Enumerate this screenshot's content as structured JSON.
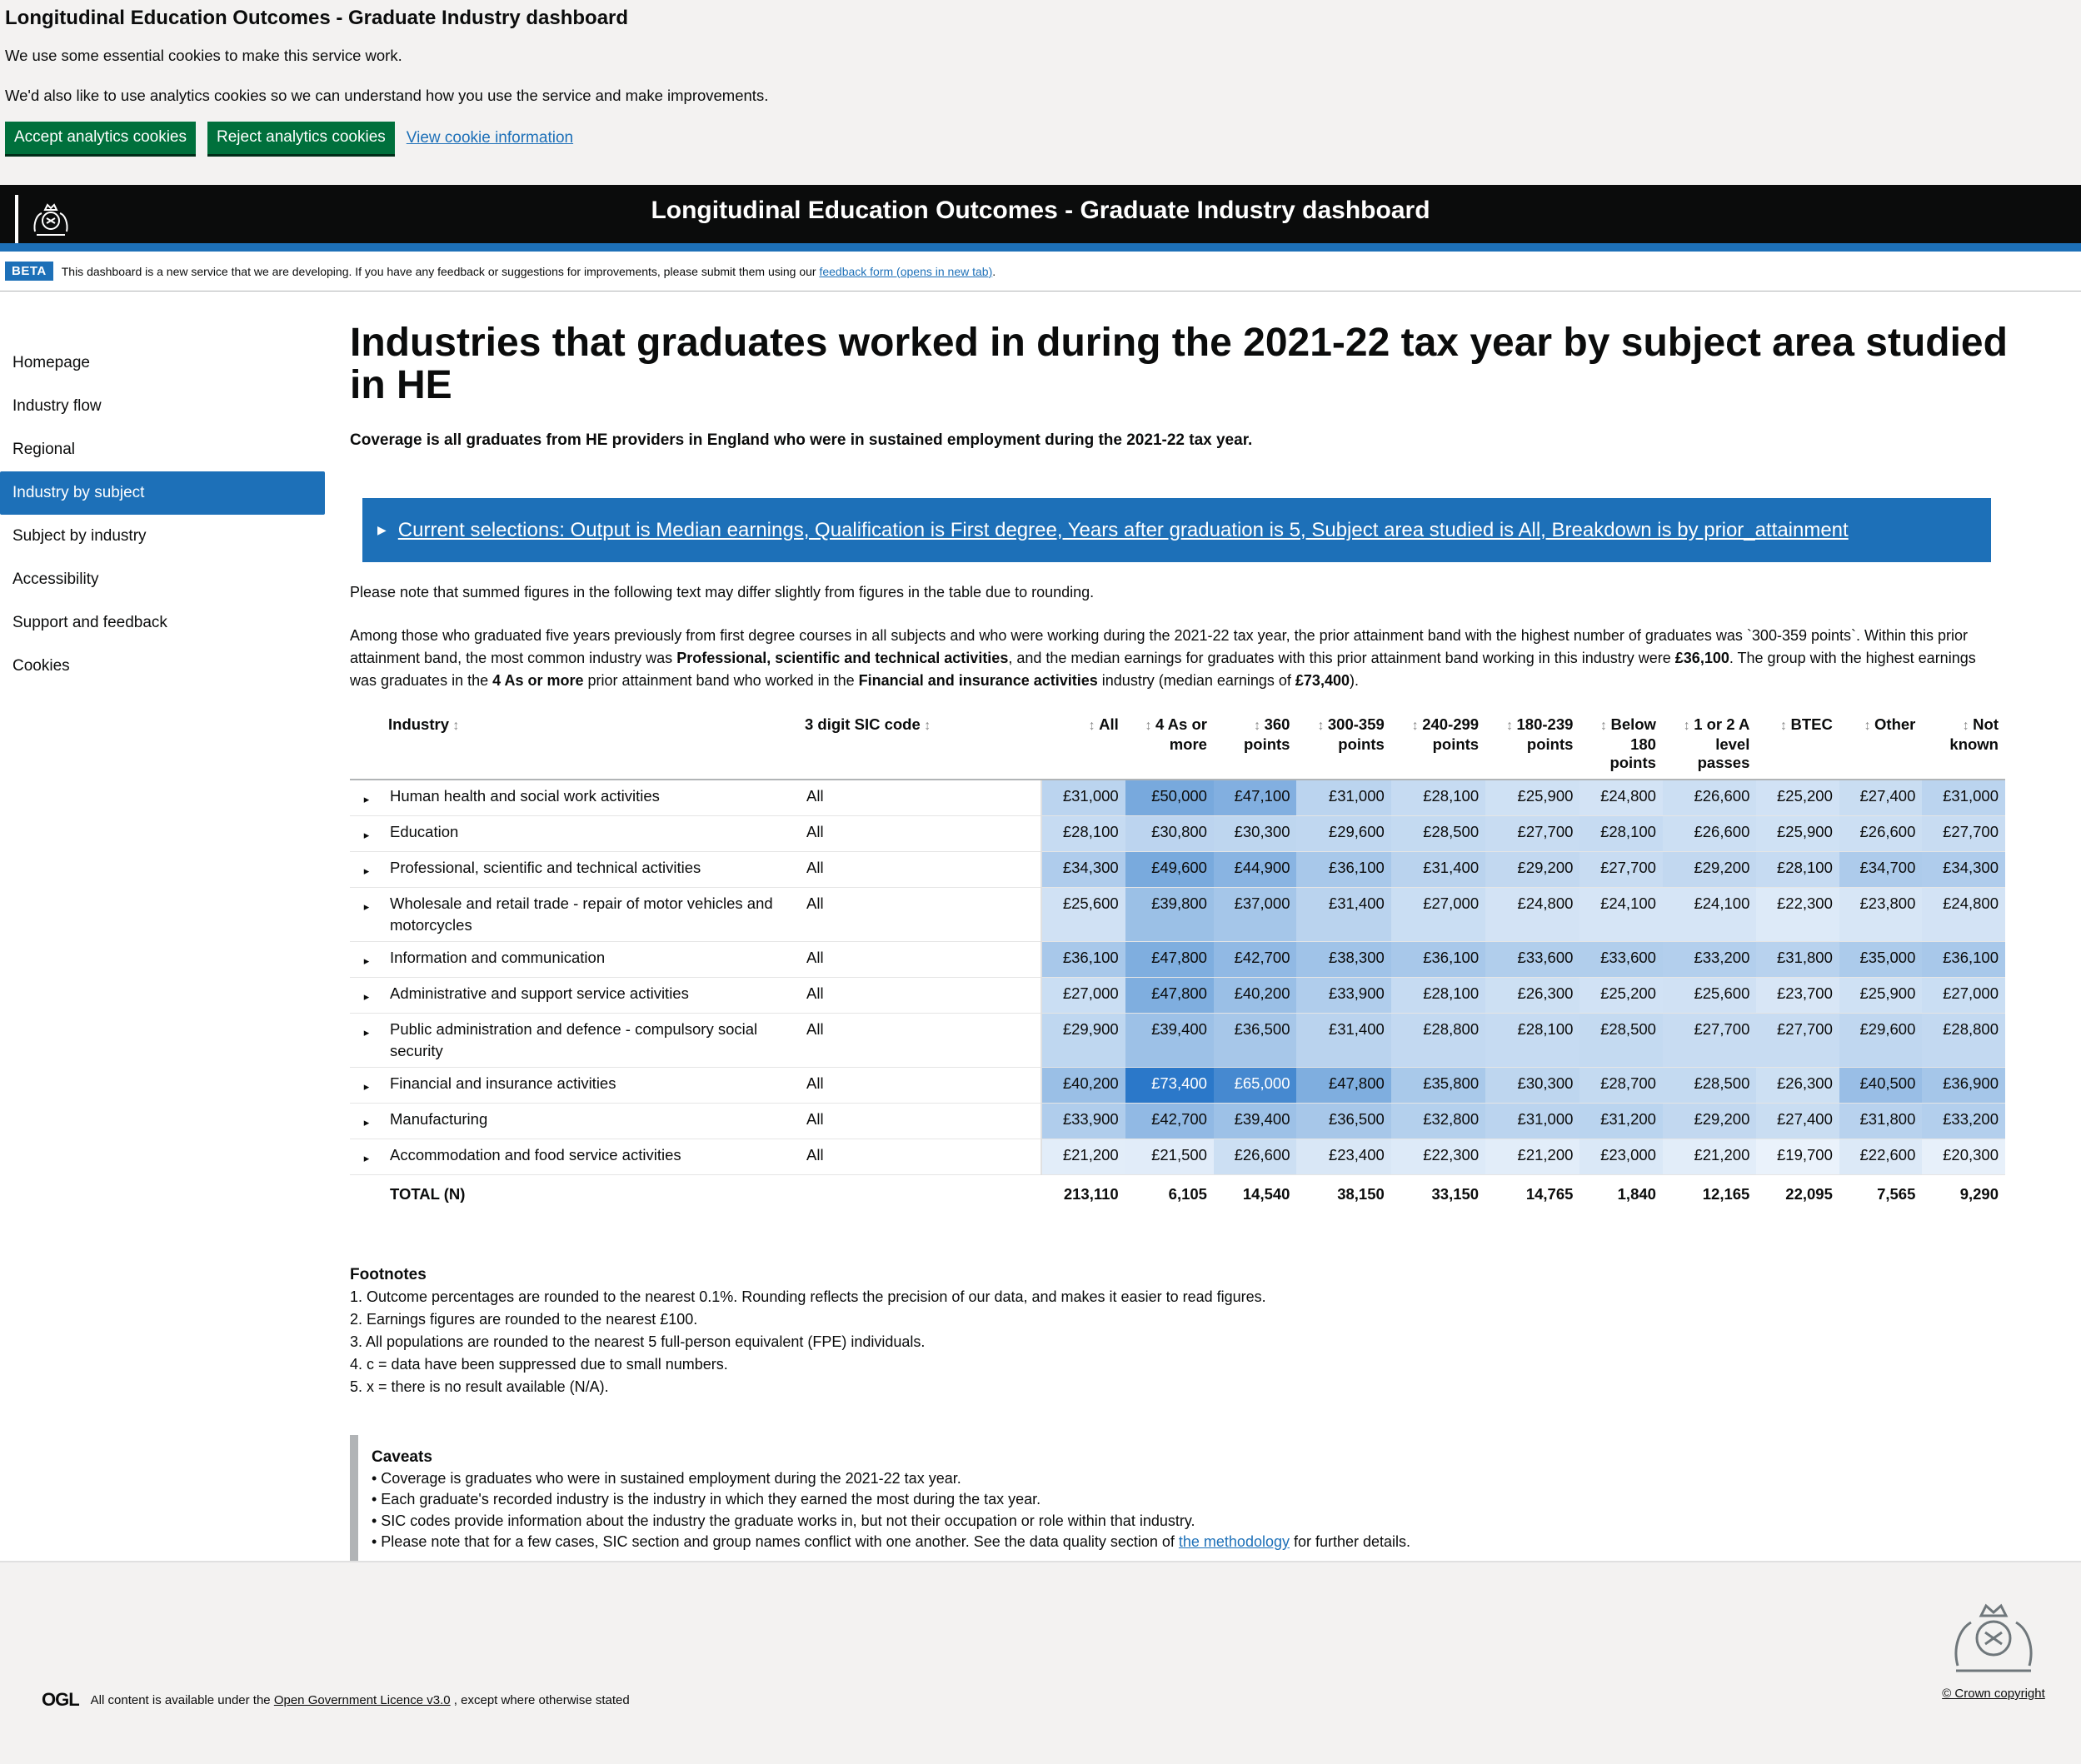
{
  "cookie_banner": {
    "title": "Longitudinal Education Outcomes - Graduate Industry dashboard",
    "line1": "We use some essential cookies to make this service work.",
    "line2": "We'd also like to use analytics cookies so we can understand how you use the service and make improvements.",
    "accept_label": "Accept analytics cookies",
    "reject_label": "Reject analytics cookies",
    "view_label": "View cookie information"
  },
  "header": {
    "title": "Longitudinal Education Outcomes - Graduate Industry dashboard"
  },
  "beta": {
    "tag": "BETA",
    "text": "This dashboard is a new service that we are developing. If you have any feedback or suggestions for improvements, please submit them using our",
    "link": "feedback form (opens in new tab)",
    "end": "."
  },
  "sidebar": {
    "items": [
      {
        "label": "Homepage",
        "active": false
      },
      {
        "label": "Industry flow",
        "active": false
      },
      {
        "label": "Regional",
        "active": false
      },
      {
        "label": "Industry by subject",
        "active": true
      },
      {
        "label": "Subject by industry",
        "active": false
      },
      {
        "label": "Accessibility",
        "active": false
      },
      {
        "label": "Support and feedback",
        "active": false
      },
      {
        "label": "Cookies",
        "active": false
      }
    ]
  },
  "main": {
    "title": "Industries that graduates worked in during the 2021-22 tax year by subject area studied in HE",
    "coverage": "Coverage is all graduates from HE providers in England who were in sustained employment during the 2021-22 tax year.",
    "selections": "Current selections: Output is Median earnings, Qualification is First degree, Years after graduation is 5, Subject area studied is All, Breakdown is by prior_attainment",
    "note": "Please note that summed figures in the following text may differ slightly from figures in the table due to rounding.",
    "summary": {
      "p1": "Among those who graduated five years previously from first degree courses in all subjects and who were working during the 2021-22 tax year, the prior attainment band with the highest number of graduates was `300-359 points`. Within this prior attainment band, the most common industry was ",
      "b1": "Professional, scientific and technical activities",
      "p2": ", and the median earnings for graduates with this prior attainment band working in this industry were ",
      "b2": "£36,100",
      "p3": ". The group with the highest earnings was graduates in the ",
      "b3": "4 As or more",
      "p4": " prior attainment band who worked in the ",
      "b4": "Financial and insurance activities",
      "p5": " industry (median earnings of ",
      "b5": "£73,400",
      "p6": ")."
    }
  },
  "table": {
    "columns": [
      {
        "label": "Industry",
        "lines": [
          "Industry"
        ]
      },
      {
        "label": "3 digit SIC code",
        "lines": [
          "3 digit SIC code"
        ]
      },
      {
        "label": "All",
        "lines": [
          "All"
        ]
      },
      {
        "label": "4 As or more",
        "lines": [
          "4 As or",
          "more"
        ]
      },
      {
        "label": "360 points",
        "lines": [
          "360",
          "points"
        ]
      },
      {
        "label": "300-359 points",
        "lines": [
          "300-359",
          "points"
        ]
      },
      {
        "label": "240-299 points",
        "lines": [
          "240-299",
          "points"
        ]
      },
      {
        "label": "180-239 points",
        "lines": [
          "180-239",
          "points"
        ]
      },
      {
        "label": "Below 180 points",
        "lines": [
          "Below",
          "180",
          "points"
        ]
      },
      {
        "label": "1 or 2 A level passes",
        "lines": [
          "1 or 2 A",
          "level",
          "passes"
        ]
      },
      {
        "label": "BTEC",
        "lines": [
          "BTEC"
        ]
      },
      {
        "label": "Other",
        "lines": [
          "Other"
        ]
      },
      {
        "label": "Not known",
        "lines": [
          "Not",
          "known"
        ]
      }
    ],
    "rows": [
      {
        "industry": "Human health and social work activities",
        "sic": "All",
        "values": [
          "£31,000",
          "£50,000",
          "£47,100",
          "£31,000",
          "£28,100",
          "£25,900",
          "£24,800",
          "£26,600",
          "£25,200",
          "£27,400",
          "£31,000"
        ],
        "nums": [
          31000,
          50000,
          47100,
          31000,
          28100,
          25900,
          24800,
          26600,
          25200,
          27400,
          31000
        ]
      },
      {
        "industry": "Education",
        "sic": "All",
        "values": [
          "£28,100",
          "£30,800",
          "£30,300",
          "£29,600",
          "£28,500",
          "£27,700",
          "£28,100",
          "£26,600",
          "£25,900",
          "£26,600",
          "£27,700"
        ],
        "nums": [
          28100,
          30800,
          30300,
          29600,
          28500,
          27700,
          28100,
          26600,
          25900,
          26600,
          27700
        ]
      },
      {
        "industry": "Professional, scientific and technical activities",
        "sic": "All",
        "values": [
          "£34,300",
          "£49,600",
          "£44,900",
          "£36,100",
          "£31,400",
          "£29,200",
          "£27,700",
          "£29,200",
          "£28,100",
          "£34,700",
          "£34,300"
        ],
        "nums": [
          34300,
          49600,
          44900,
          36100,
          31400,
          29200,
          27700,
          29200,
          28100,
          34700,
          34300
        ]
      },
      {
        "industry": "Wholesale and retail trade - repair of motor vehicles and motorcycles",
        "sic": "All",
        "values": [
          "£25,600",
          "£39,800",
          "£37,000",
          "£31,400",
          "£27,000",
          "£24,800",
          "£24,100",
          "£24,100",
          "£22,300",
          "£23,800",
          "£24,800"
        ],
        "nums": [
          25600,
          39800,
          37000,
          31400,
          27000,
          24800,
          24100,
          24100,
          22300,
          23800,
          24800
        ]
      },
      {
        "industry": "Information and communication",
        "sic": "All",
        "values": [
          "£36,100",
          "£47,800",
          "£42,700",
          "£38,300",
          "£36,100",
          "£33,600",
          "£33,600",
          "£33,200",
          "£31,800",
          "£35,000",
          "£36,100"
        ],
        "nums": [
          36100,
          47800,
          42700,
          38300,
          36100,
          33600,
          33600,
          33200,
          31800,
          35000,
          36100
        ]
      },
      {
        "industry": "Administrative and support service activities",
        "sic": "All",
        "values": [
          "£27,000",
          "£47,800",
          "£40,200",
          "£33,900",
          "£28,100",
          "£26,300",
          "£25,200",
          "£25,600",
          "£23,700",
          "£25,900",
          "£27,000"
        ],
        "nums": [
          27000,
          47800,
          40200,
          33900,
          28100,
          26300,
          25200,
          25600,
          23700,
          25900,
          27000
        ]
      },
      {
        "industry": "Public administration and defence - compulsory social security",
        "sic": "All",
        "values": [
          "£29,900",
          "£39,400",
          "£36,500",
          "£31,400",
          "£28,800",
          "£28,100",
          "£28,500",
          "£27,700",
          "£27,700",
          "£29,600",
          "£28,800"
        ],
        "nums": [
          29900,
          39400,
          36500,
          31400,
          28800,
          28100,
          28500,
          27700,
          27700,
          29600,
          28800
        ]
      },
      {
        "industry": "Financial and insurance activities",
        "sic": "All",
        "values": [
          "£40,200",
          "£73,400",
          "£65,000",
          "£47,800",
          "£35,800",
          "£30,300",
          "£28,700",
          "£28,500",
          "£26,300",
          "£40,500",
          "£36,900"
        ],
        "nums": [
          40200,
          73400,
          65000,
          47800,
          35800,
          30300,
          28700,
          28500,
          26300,
          40500,
          36900
        ]
      },
      {
        "industry": "Manufacturing",
        "sic": "All",
        "values": [
          "£33,900",
          "£42,700",
          "£39,400",
          "£36,500",
          "£32,800",
          "£31,000",
          "£31,200",
          "£29,200",
          "£27,400",
          "£31,800",
          "£33,200"
        ],
        "nums": [
          33900,
          42700,
          39400,
          36500,
          32800,
          31000,
          31200,
          29200,
          27400,
          31800,
          33200
        ]
      },
      {
        "industry": "Accommodation and food service activities",
        "sic": "All",
        "values": [
          "£21,200",
          "£21,500",
          "£26,600",
          "£23,400",
          "£22,300",
          "£21,200",
          "£23,000",
          "£21,200",
          "£19,700",
          "£22,600",
          "£20,300"
        ],
        "nums": [
          21200,
          21500,
          26600,
          23400,
          22300,
          21200,
          23000,
          21200,
          19700,
          22600,
          20300
        ]
      }
    ],
    "total": {
      "label": "TOTAL (N)",
      "values": [
        "213,110",
        "6,105",
        "14,540",
        "38,150",
        "33,150",
        "14,765",
        "1,840",
        "12,165",
        "22,095",
        "7,565",
        "9,290"
      ]
    },
    "heat_colors": {
      "low": "#eaf2fb",
      "high": "#2b78c9"
    }
  },
  "footnotes": {
    "title": "Footnotes",
    "items": [
      "1. Outcome percentages are rounded to the nearest 0.1%. Rounding reflects the precision of our data, and makes it easier to read figures.",
      "2. Earnings figures are rounded to the nearest £100.",
      "3. All populations are rounded to the nearest 5 full-person equivalent (FPE) individuals.",
      "4. c = data have been suppressed due to small numbers.",
      "5. x = there is no result available (N/A)."
    ]
  },
  "caveats": {
    "title": "Caveats",
    "items": [
      "• Coverage is graduates who were in sustained employment during the 2021-22 tax year.",
      "• Each graduate's recorded industry is the industry in which they earned the most during the tax year.",
      "• SIC codes provide information about the industry the graduate works in, but not their occupation or role within that industry."
    ],
    "last_pre": "• Please note that for a few cases, SIC section and group names conflict with one another. See the data quality section of ",
    "last_link": "the methodology",
    "last_post": " for further details."
  },
  "footer": {
    "ogl_logo": "OGL",
    "ogl_pre": "All content is available under the",
    "ogl_link": "Open Government Licence v3.0",
    "ogl_post": ", except where otherwise stated",
    "crown": "© Crown copyright"
  },
  "icons": {
    "crest": "royal-crest-icon",
    "expand": "triangle-right-icon",
    "sort": "sort-arrows-icon"
  }
}
